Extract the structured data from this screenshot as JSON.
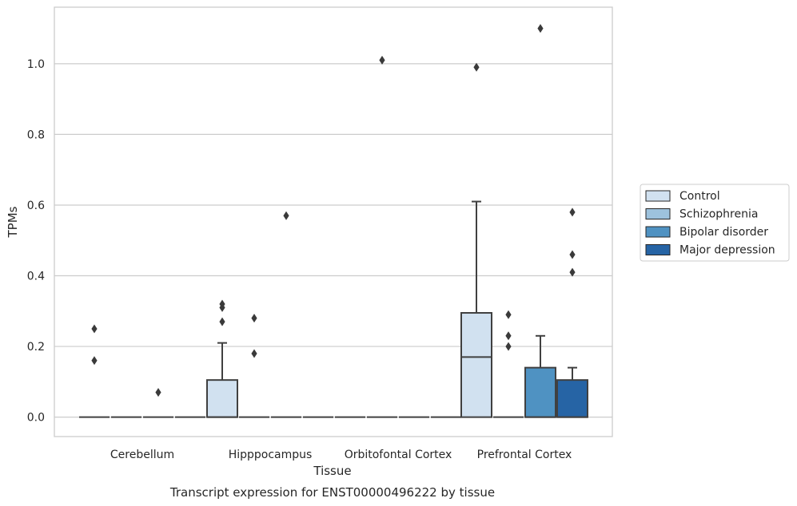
{
  "chart_data": {
    "type": "box",
    "title": "",
    "caption": "Transcript expression for ENST00000496222 by tissue",
    "xlabel": "Tissue",
    "ylabel": "TPMs",
    "ylim": [
      -0.055,
      1.16
    ],
    "yticks": [
      0.0,
      0.2,
      0.4,
      0.6,
      0.8,
      1.0
    ],
    "ytick_labels": [
      "0.0",
      "0.2",
      "0.4",
      "0.6",
      "0.8",
      "1.0"
    ],
    "categories": [
      "Cerebellum",
      "Hipppocampus",
      "Orbitofontal Cortex",
      "Prefrontal Cortex"
    ],
    "grid": "horizontal",
    "legend_position": "right",
    "series": [
      {
        "name": "Control",
        "color": "#d1e1f0",
        "boxes": [
          {
            "q1": 0,
            "median": 0,
            "q3": 0,
            "whislo": 0,
            "whishi": 0,
            "fliers": [
              0.25,
              0.16
            ]
          },
          {
            "q1": 0,
            "median": 0,
            "q3": 0.105,
            "whislo": 0,
            "whishi": 0.21,
            "fliers": [
              0.32,
              0.31,
              0.27
            ]
          },
          {
            "q1": 0,
            "median": 0,
            "q3": 0,
            "whislo": 0,
            "whishi": 0,
            "fliers": []
          },
          {
            "q1": 0,
            "median": 0.17,
            "q3": 0.295,
            "whislo": 0,
            "whishi": 0.61,
            "fliers": [
              0.99
            ]
          }
        ]
      },
      {
        "name": "Schizophrenia",
        "color": "#9dc2dd",
        "boxes": [
          {
            "q1": 0,
            "median": 0,
            "q3": 0,
            "whislo": 0,
            "whishi": 0,
            "fliers": []
          },
          {
            "q1": 0,
            "median": 0,
            "q3": 0,
            "whislo": 0,
            "whishi": 0,
            "fliers": [
              0.28,
              0.18
            ]
          },
          {
            "q1": 0,
            "median": 0,
            "q3": 0,
            "whislo": 0,
            "whishi": 0,
            "fliers": [
              1.01
            ]
          },
          {
            "q1": 0,
            "median": 0,
            "q3": 0,
            "whislo": 0,
            "whishi": 0,
            "fliers": [
              0.29,
              0.23,
              0.2
            ]
          }
        ]
      },
      {
        "name": "Bipolar disorder",
        "color": "#4f92c2",
        "boxes": [
          {
            "q1": 0,
            "median": 0,
            "q3": 0,
            "whislo": 0,
            "whishi": 0,
            "fliers": [
              0.07
            ]
          },
          {
            "q1": 0,
            "median": 0,
            "q3": 0,
            "whislo": 0,
            "whishi": 0,
            "fliers": [
              0.57
            ]
          },
          {
            "q1": 0,
            "median": 0,
            "q3": 0,
            "whislo": 0,
            "whishi": 0,
            "fliers": []
          },
          {
            "q1": 0,
            "median": 0,
            "q3": 0.14,
            "whislo": 0,
            "whishi": 0.23,
            "fliers": [
              1.1
            ]
          }
        ]
      },
      {
        "name": "Major depression",
        "color": "#2664a5",
        "boxes": [
          {
            "q1": 0,
            "median": 0,
            "q3": 0,
            "whislo": 0,
            "whishi": 0,
            "fliers": []
          },
          {
            "q1": 0,
            "median": 0,
            "q3": 0,
            "whislo": 0,
            "whishi": 0,
            "fliers": []
          },
          {
            "q1": 0,
            "median": 0,
            "q3": 0,
            "whislo": 0,
            "whishi": 0,
            "fliers": []
          },
          {
            "q1": 0,
            "median": 0,
            "q3": 0.105,
            "whislo": 0,
            "whishi": 0.14,
            "fliers": [
              0.58,
              0.46,
              0.41
            ]
          }
        ]
      }
    ]
  }
}
